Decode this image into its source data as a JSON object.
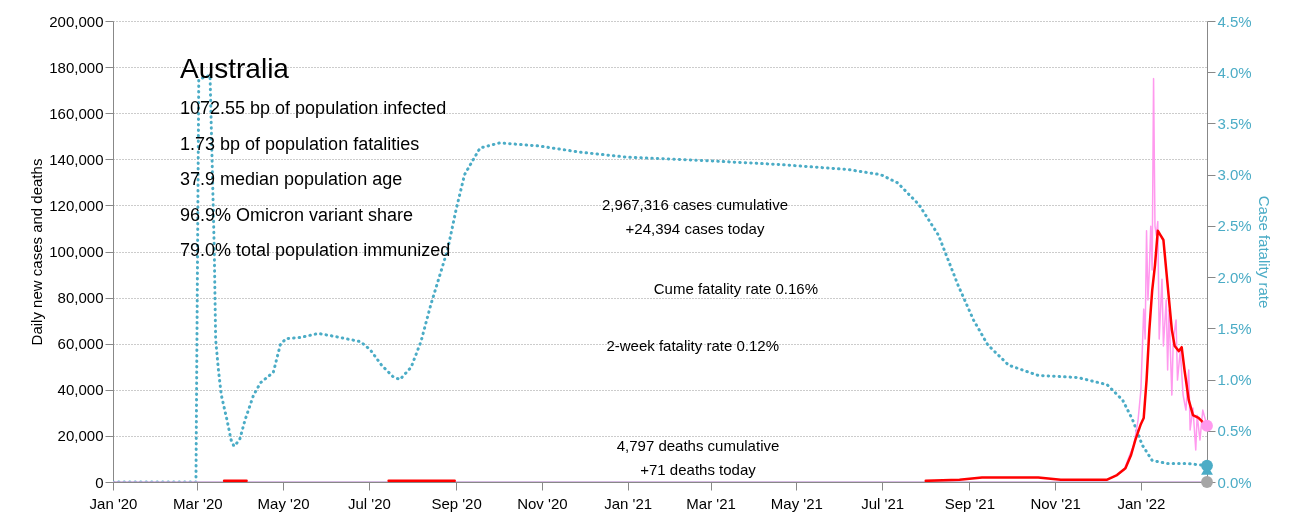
{
  "chart_data": {
    "type": "line",
    "title": "Australia",
    "ylabel": "Daily new cases and deaths",
    "y2label": "Case fatality rate",
    "xlim": [
      "2020-01-01",
      "2022-02-17"
    ],
    "xticks": [
      {
        "value": "2020-01-01",
        "label": "Jan '20"
      },
      {
        "value": "2020-03-01",
        "label": "Mar '20"
      },
      {
        "value": "2020-05-01",
        "label": "May '20"
      },
      {
        "value": "2020-07-01",
        "label": "Jul '20"
      },
      {
        "value": "2020-09-01",
        "label": "Sep '20"
      },
      {
        "value": "2020-11-01",
        "label": "Nov '20"
      },
      {
        "value": "2021-01-01",
        "label": "Jan '21"
      },
      {
        "value": "2021-03-01",
        "label": "Mar '21"
      },
      {
        "value": "2021-05-01",
        "label": "May '21"
      },
      {
        "value": "2021-07-01",
        "label": "Jul '21"
      },
      {
        "value": "2021-09-01",
        "label": "Sep '21"
      },
      {
        "value": "2021-11-01",
        "label": "Nov '21"
      },
      {
        "value": "2022-01-01",
        "label": "Jan '22"
      }
    ],
    "ylim": [
      0,
      200000
    ],
    "yticks": [
      0,
      {
        "value": 20000,
        "label": "20,000"
      },
      {
        "value": 40000,
        "label": "40,000"
      },
      {
        "value": 60000,
        "label": "60,000"
      },
      {
        "value": 80000,
        "label": "80,000"
      },
      {
        "value": 100000,
        "label": "100,000"
      },
      {
        "value": 120000,
        "label": "120,000"
      },
      {
        "value": 140000,
        "label": "140,000"
      },
      {
        "value": 160000,
        "label": "160,000"
      },
      {
        "value": 180000,
        "label": "180,000"
      },
      {
        "value": 200000,
        "label": "200,000"
      }
    ],
    "y2lim": [
      0,
      4.5
    ],
    "y2ticks": [
      {
        "value": 0,
        "label": "0.0%"
      },
      {
        "value": 0.5,
        "label": "0.5%"
      },
      {
        "value": 1,
        "label": "1.0%"
      },
      {
        "value": 1.5,
        "label": "1.5%"
      },
      {
        "value": 2,
        "label": "2.0%"
      },
      {
        "value": 2.5,
        "label": "2.5%"
      },
      {
        "value": 3,
        "label": "3.0%"
      },
      {
        "value": 3.5,
        "label": "3.5%"
      },
      {
        "value": 4,
        "label": "4.0%"
      },
      {
        "value": 4.5,
        "label": "4.5%"
      }
    ],
    "grid": "y",
    "annotations": [
      "1072.55 bp of population infected",
      "1.73 bp of population fatalities",
      "37.9 median population age",
      "96.9% Omicron variant share",
      "79.0% total population immunized",
      "2,967,316 cases cumulative\n+24,394 cases today",
      "Cume fatality rate 0.16%",
      "2-week fatality rate 0.12%",
      "4,797 deaths cumulative\n+71 deaths today"
    ],
    "series": [
      {
        "color": "#c9a6d9",
        "line_style": "solid",
        "x": [
          "2020-01-01",
          "2022-02-17"
        ],
        "values": [
          0,
          0
        ]
      },
      {
        "axis": "y2",
        "color": "#4bacc6",
        "line_style": "dotted",
        "x": [
          "2020-01-01",
          "2020-02-29",
          "2020-03-02",
          "2020-03-10",
          "2020-03-13",
          "2020-03-14",
          "2020-03-16",
          "2020-03-18",
          "2020-03-22",
          "2020-03-25",
          "2020-03-27",
          "2020-03-31",
          "2020-04-04",
          "2020-04-10",
          "2020-04-15",
          "2020-04-24",
          "2020-04-29",
          "2020-05-03",
          "2020-05-13",
          "2020-05-26",
          "2020-06-07",
          "2020-06-25",
          "2020-07-02",
          "2020-07-10",
          "2020-07-18",
          "2020-07-23",
          "2020-07-31",
          "2020-08-07",
          "2020-08-14",
          "2020-08-22",
          "2020-08-26",
          "2020-09-01",
          "2020-09-07",
          "2020-09-18",
          "2020-10-02",
          "2020-10-30",
          "2020-11-28",
          "2021-01-01",
          "2021-02-21",
          "2021-04-18",
          "2021-06-07",
          "2021-06-30",
          "2021-07-12",
          "2021-07-27",
          "2021-08-10",
          "2021-08-24",
          "2021-09-04",
          "2021-09-14",
          "2021-09-29",
          "2021-10-20",
          "2021-11-17",
          "2021-12-08",
          "2021-12-19",
          "2021-12-26",
          "2022-01-02",
          "2022-01-09",
          "2022-01-20",
          "2022-02-03",
          "2022-02-17"
        ],
        "values": [
          0,
          0,
          3.93,
          3.97,
          2.27,
          1.39,
          1.09,
          0.85,
          0.61,
          0.41,
          0.35,
          0.41,
          0.61,
          0.85,
          0.97,
          1.07,
          1.34,
          1.4,
          1.41,
          1.45,
          1.42,
          1.37,
          1.29,
          1.14,
          1.03,
          1.0,
          1.12,
          1.37,
          1.73,
          2.09,
          2.27,
          2.66,
          3.0,
          3.26,
          3.31,
          3.28,
          3.22,
          3.17,
          3.14,
          3.1,
          3.05,
          3.0,
          2.92,
          2.71,
          2.41,
          1.92,
          1.58,
          1.34,
          1.14,
          1.04,
          1.02,
          0.95,
          0.8,
          0.61,
          0.36,
          0.21,
          0.18,
          0.18,
          0.16
        ]
      },
      {
        "color": "#ff99ee",
        "line_style": "solid",
        "x": [
          "2021-12-15",
          "2021-12-20",
          "2021-12-24",
          "2021-12-27",
          "2021-12-30",
          "2022-01-01",
          "2022-01-03",
          "2022-01-04",
          "2022-01-05",
          "2022-01-06",
          "2022-01-07",
          "2022-01-08",
          "2022-01-09",
          "2022-01-10",
          "2022-01-11",
          "2022-01-12",
          "2022-01-13",
          "2022-01-14",
          "2022-01-16",
          "2022-01-17",
          "2022-01-19",
          "2022-01-20",
          "2022-01-21",
          "2022-01-23",
          "2022-01-24",
          "2022-01-26",
          "2022-01-27",
          "2022-01-29",
          "2022-01-31",
          "2022-02-02",
          "2022-02-04",
          "2022-02-05",
          "2022-02-07",
          "2022-02-09",
          "2022-02-10",
          "2022-02-12",
          "2022-02-14",
          "2022-02-17"
        ],
        "values": [
          3000,
          5200,
          11700,
          16000,
          27000,
          40000,
          75000,
          62000,
          109000,
          79000,
          92000,
          111000,
          92000,
          175000,
          111000,
          107000,
          113000,
          62000,
          88000,
          59000,
          79000,
          48600,
          74600,
          37700,
          61600,
          70300,
          44200,
          57000,
          37700,
          31200,
          48600,
          22600,
          32100,
          13900,
          29000,
          18200,
          31200,
          24394
        ]
      },
      {
        "color": "#ff0000",
        "line_style": "solid",
        "x": [
          "2020-03-20",
          "2020-04-05",
          "2020-04-15",
          "2020-07-15",
          "2020-08-05",
          "2020-08-31",
          "2020-09-10",
          "2021-08-01",
          "2021-08-25",
          "2021-09-10",
          "2021-10-01",
          "2021-10-20",
          "2021-11-05",
          "2021-12-01",
          "2021-12-08",
          "2021-12-15",
          "2021-12-21",
          "2021-12-25",
          "2021-12-28",
          "2022-01-01",
          "2022-01-03",
          "2022-01-05",
          "2022-01-07",
          "2022-01-09",
          "2022-01-11",
          "2022-01-13",
          "2022-01-15",
          "2022-01-17",
          "2022-01-21",
          "2022-01-23",
          "2022-01-25",
          "2022-01-28",
          "2022-01-30",
          "2022-02-01",
          "2022-02-04",
          "2022-02-07",
          "2022-02-11",
          "2022-02-14",
          "2022-02-17"
        ],
        "values": [
          500,
          500,
          null,
          500,
          500,
          500,
          null,
          500,
          1000,
          2000,
          2000,
          2000,
          1000,
          1000,
          1000,
          3000,
          6000,
          11700,
          18200,
          25200,
          27800,
          44000,
          66000,
          83000,
          94000,
          109000,
          107000,
          105000,
          79000,
          66000,
          59000,
          56800,
          58500,
          48600,
          35600,
          29000,
          27800,
          26000,
          23400
        ]
      },
      {
        "type": "scatter",
        "color": "#a6a6a6",
        "marker": "circle",
        "x": [
          "2022-02-17"
        ],
        "values": [
          0
        ]
      },
      {
        "type": "scatter",
        "axis": "y2",
        "color": "#4bacc6",
        "marker": "triangle",
        "x": [
          "2022-02-17"
        ],
        "values": [
          0.12
        ]
      },
      {
        "type": "scatter",
        "axis": "y2",
        "color": "#4bacc6",
        "marker": "circle",
        "x": [
          "2022-02-17"
        ],
        "values": [
          0.16
        ]
      },
      {
        "type": "scatter",
        "color": "#ff99ee",
        "marker": "circle",
        "x": [
          "2022-02-17"
        ],
        "values": [
          24394
        ]
      }
    ]
  }
}
